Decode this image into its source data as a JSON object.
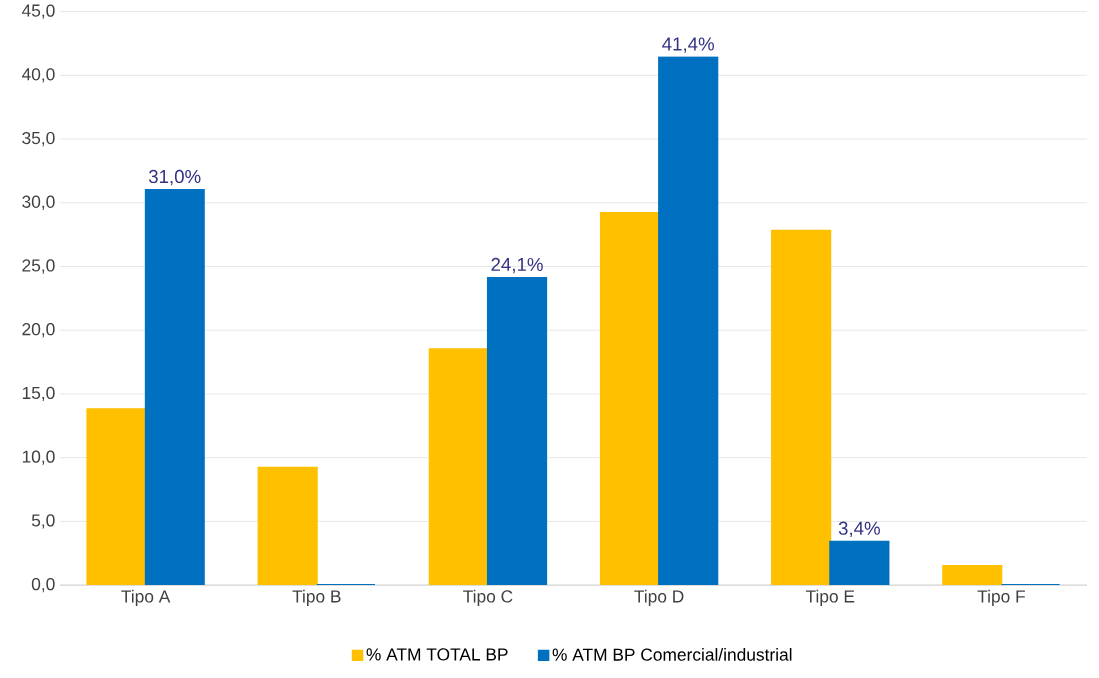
{
  "chart_data": {
    "type": "bar",
    "categories": [
      "Tipo A",
      "Tipo B",
      "Tipo C",
      "Tipo D",
      "Tipo E",
      "Tipo F"
    ],
    "series": [
      {
        "name": "% ATM TOTAL BP",
        "color": "#ffc000",
        "values": [
          13.8,
          9.2,
          18.5,
          29.2,
          27.8,
          1.5
        ]
      },
      {
        "name": "% ATM BP Comercial/industrial",
        "color": "#0070c0",
        "values": [
          31.0,
          0,
          24.1,
          41.4,
          3.4,
          0
        ],
        "value_labels": [
          "31,0%",
          null,
          "24,1%",
          "41,4%",
          "3,4%",
          null
        ]
      }
    ],
    "ylim": [
      0,
      45
    ],
    "yticks": [
      {
        "value": 0,
        "label": "0,0"
      },
      {
        "value": 5,
        "label": "5,0"
      },
      {
        "value": 10,
        "label": "10,0"
      },
      {
        "value": 15,
        "label": "15,0"
      },
      {
        "value": 20,
        "label": "20,0"
      },
      {
        "value": 25,
        "label": "25,0"
      },
      {
        "value": 30,
        "label": "30,0"
      },
      {
        "value": 35,
        "label": "35,0"
      },
      {
        "value": 40,
        "label": "40,0"
      },
      {
        "value": 45,
        "label": "45,0"
      }
    ],
    "grid": "y",
    "legend": "bottom"
  }
}
